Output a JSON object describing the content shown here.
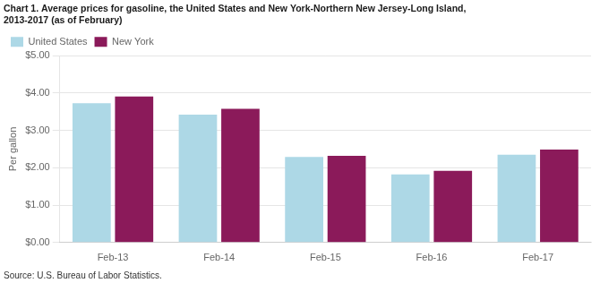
{
  "chart_data": {
    "type": "bar",
    "title": [
      "Chart 1. Average prices for gasoline, the United States and New York-Northern New Jersey-Long Island,",
      "2013-2017 (as of February)"
    ],
    "ylabel": "Per gallon",
    "annotations": [
      "Source: U.S. Bureau of Labor Statistics."
    ],
    "categories": [
      "Feb-13",
      "Feb-14",
      "Feb-15",
      "Feb-16",
      "Feb-17"
    ],
    "series": [
      {
        "name": "United States",
        "color": "#ADD8E6",
        "values": [
          3.73,
          3.42,
          2.29,
          1.82,
          2.35
        ]
      },
      {
        "name": "New York",
        "color": "#8B1A5A",
        "values": [
          3.91,
          3.58,
          2.32,
          1.92,
          2.49
        ]
      }
    ],
    "ylim": [
      0,
      5.0
    ],
    "yticks": [
      {
        "value": 0.0,
        "label": "$0.00"
      },
      {
        "value": 1.0,
        "label": "$1.00"
      },
      {
        "value": 2.0,
        "label": "$2.00"
      },
      {
        "value": 3.0,
        "label": "$3.00"
      },
      {
        "value": 4.0,
        "label": "$4.00"
      },
      {
        "value": 5.0,
        "label": "$5.00"
      }
    ],
    "grid": true,
    "legend": "upper left"
  }
}
